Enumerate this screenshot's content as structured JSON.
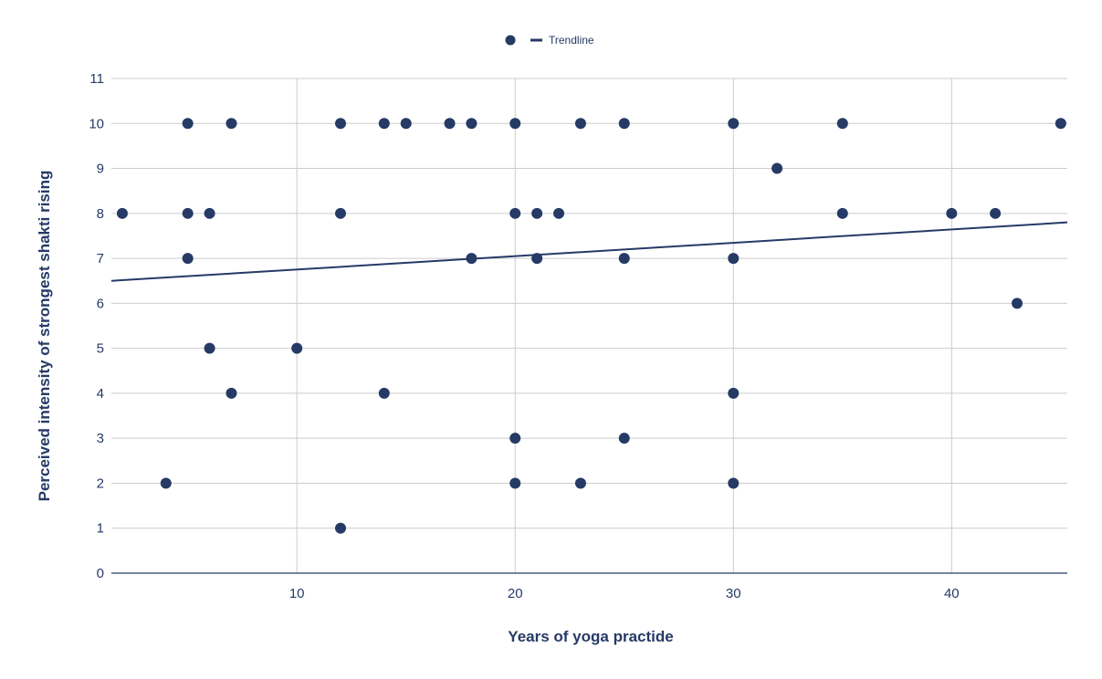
{
  "chart_data": {
    "type": "scatter",
    "title": "",
    "xlabel": "Years of yoga practide",
    "ylabel": "Perceived intensity of strongest shakti rising",
    "xlim": [
      1.5,
      45.3
    ],
    "ylim": [
      0,
      11
    ],
    "x_ticks": [
      10,
      20,
      30,
      40
    ],
    "y_ticks": [
      0,
      1,
      2,
      3,
      4,
      5,
      6,
      7,
      8,
      9,
      10,
      11
    ],
    "grid": true,
    "legend": {
      "position": "top-center",
      "entries": [
        {
          "label": "",
          "marker": "dot"
        },
        {
          "label": "Trendline",
          "marker": "line"
        }
      ]
    },
    "colors": {
      "points": "#263a66",
      "trendline": "#263a66",
      "grid": "#cccccc"
    },
    "points": [
      [
        2,
        8
      ],
      [
        4,
        2
      ],
      [
        5,
        10
      ],
      [
        5,
        8
      ],
      [
        5,
        7
      ],
      [
        6,
        8
      ],
      [
        6,
        5
      ],
      [
        7,
        10
      ],
      [
        7,
        4
      ],
      [
        10,
        5
      ],
      [
        12,
        10
      ],
      [
        12,
        8
      ],
      [
        12,
        1
      ],
      [
        14,
        10
      ],
      [
        14,
        4
      ],
      [
        15,
        10
      ],
      [
        17,
        10
      ],
      [
        18,
        10
      ],
      [
        18,
        7
      ],
      [
        20,
        10
      ],
      [
        20,
        8
      ],
      [
        20,
        3
      ],
      [
        20,
        2
      ],
      [
        21,
        8
      ],
      [
        21,
        7
      ],
      [
        22,
        8
      ],
      [
        23,
        10
      ],
      [
        23,
        2
      ],
      [
        25,
        10
      ],
      [
        25,
        7
      ],
      [
        25,
        3
      ],
      [
        30,
        10
      ],
      [
        30,
        7
      ],
      [
        30,
        4
      ],
      [
        30,
        2
      ],
      [
        32,
        9
      ],
      [
        35,
        10
      ],
      [
        35,
        8
      ],
      [
        40,
        8
      ],
      [
        42,
        8
      ],
      [
        43,
        6
      ],
      [
        45,
        10
      ]
    ],
    "trendline": {
      "start": [
        1.5,
        6.5
      ],
      "end": [
        45.3,
        7.8
      ]
    }
  }
}
